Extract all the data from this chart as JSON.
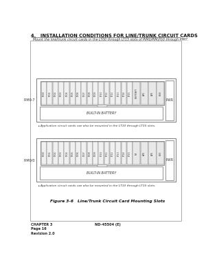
{
  "title_section": "4.   INSTALLATION CONDITIONS FOR LINE/TRUNK CIRCUIT CARDS",
  "subtitle": "Mount the line/trunk circuit cards in the LT00 through LT15 slots of PIM0/PIM(H)0 through PIM7.",
  "lt_slots": [
    "LT00",
    "LT01",
    "LT02",
    "LT03",
    "LT04",
    "LT05",
    "LT06",
    "LT07",
    "LT08",
    "LT09",
    "LT10",
    "LT11",
    "LT12",
    "LT13",
    "LT14",
    "LT15"
  ],
  "special_slots_top": [
    "MP/FP/AP7",
    "AP6",
    "AP8",
    "BUS/"
  ],
  "special_slots_bottom": [
    "MP",
    "AP8",
    "AP6",
    "BUS"
  ],
  "pim_label_top": "PIM0-7",
  "pim_label_bottom": "PIM0/0",
  "pwr_label": "PWR",
  "battery_label": "BUILT-IN BATTERY",
  "bullet_text": "Application circuit cards can also be mounted in the LT10 through LT15 slots.",
  "figure_caption": "Figure 3-6   Line/Trunk Circuit Card Mounting Slots",
  "footer_left": "CHAPTER 3\nPage 16\nRevision 2.0",
  "footer_right": "ND-45504 (E)",
  "bg_color": "#ffffff",
  "edge_color": "#666666",
  "text_color": "#333333"
}
